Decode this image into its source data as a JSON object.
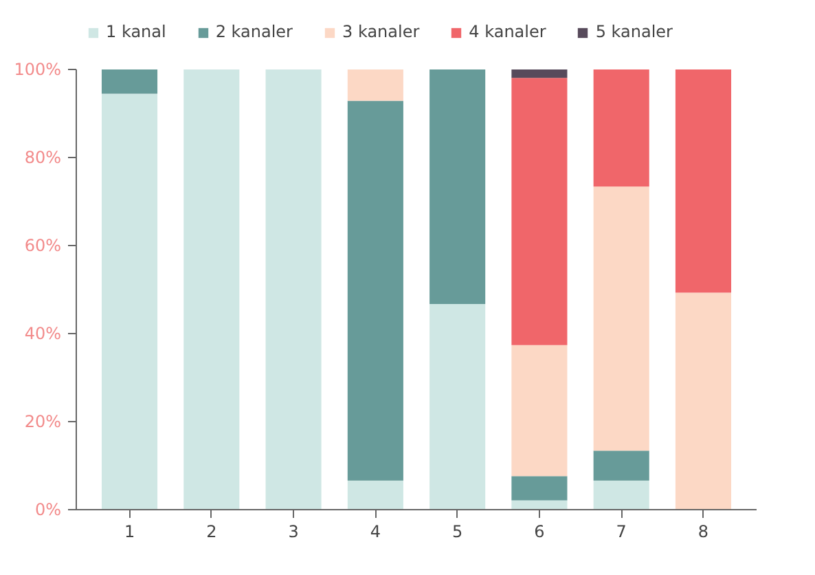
{
  "chart_data": {
    "type": "bar",
    "stacked": true,
    "categories": [
      "1",
      "2",
      "3",
      "4",
      "5",
      "6",
      "7",
      "8"
    ],
    "series": [
      {
        "name": "1 kanal",
        "color": "#cfe7e4",
        "values": [
          94.5,
          100,
          100,
          6.6,
          46.7,
          2.1,
          6.6,
          0
        ]
      },
      {
        "name": "2 kanaler",
        "color": "#679b99",
        "values": [
          5.5,
          0,
          0,
          86.3,
          53.3,
          5.5,
          6.8,
          0
        ]
      },
      {
        "name": "3 kanaler",
        "color": "#fcd8c5",
        "values": [
          0,
          0,
          0,
          7.1,
          0,
          29.8,
          60,
          49.3
        ]
      },
      {
        "name": "4 kanaler",
        "color": "#f0666a",
        "values": [
          0,
          0,
          0,
          0,
          0,
          60.7,
          26.6,
          50.7
        ]
      },
      {
        "name": "5 kanaler",
        "color": "#574a5b",
        "values": [
          0,
          0,
          0,
          0,
          0,
          1.9,
          0,
          0
        ]
      }
    ],
    "ylim": [
      0,
      100
    ],
    "yticks": [
      {
        "value": 0,
        "label": "0%"
      },
      {
        "value": 20,
        "label": "20%"
      },
      {
        "value": 40,
        "label": "40%"
      },
      {
        "value": 60,
        "label": "60%"
      },
      {
        "value": 80,
        "label": "80%"
      },
      {
        "value": 100,
        "label": "100%"
      }
    ],
    "grid": false,
    "legend": "top"
  }
}
